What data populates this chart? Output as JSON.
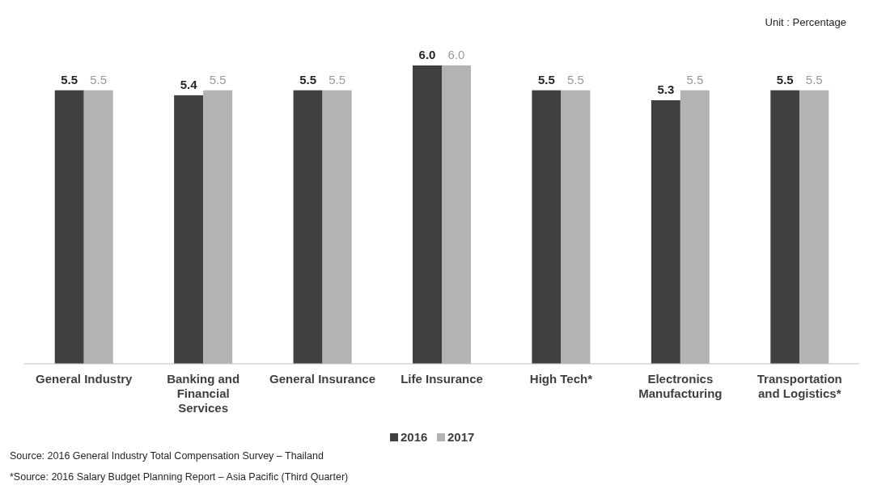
{
  "chart_data": {
    "type": "bar",
    "categories": [
      "General Industry",
      "Banking and Financial Services",
      "General Insurance",
      "Life Insurance",
      "High Tech*",
      "Electronics Manufacturing",
      "Transportation and Logistics*"
    ],
    "series": [
      {
        "name": "2016",
        "color": "#404040",
        "values": [
          5.5,
          5.4,
          5.5,
          6.0,
          5.5,
          5.3,
          5.5
        ],
        "value_labels": [
          "5.5",
          "5.4",
          "5.5",
          "6.0",
          "5.5",
          "5.3",
          "5.5"
        ]
      },
      {
        "name": "2017",
        "color": "#b3b3b3",
        "values": [
          5.5,
          5.5,
          5.5,
          6.0,
          5.5,
          5.5,
          5.5
        ],
        "value_labels": [
          "5.5",
          "5.5",
          "5.5",
          "6.0",
          "5.5",
          "5.5",
          "5.5"
        ]
      }
    ],
    "legend": "bottom",
    "annotations": [
      "Unit : Percentage",
      "Source: 2016 General Industry Total Compensation Survey – Thailand",
      "*Source: 2016 Salary Budget Planning Report – Asia Pacific (Third Quarter)"
    ]
  }
}
